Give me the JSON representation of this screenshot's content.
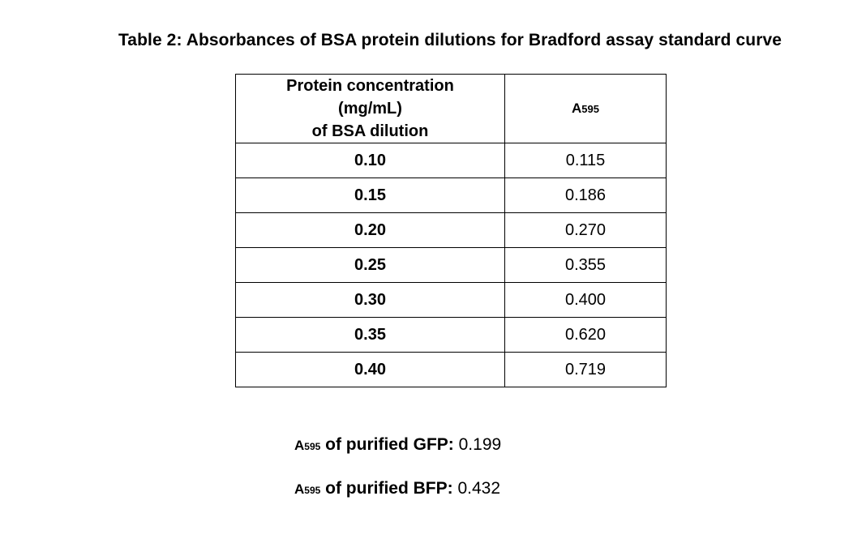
{
  "title": "Table 2: Absorbances of BSA protein dilutions for Bradford assay standard curve",
  "table": {
    "header_col1_line1": "Protein concentration",
    "header_col1_line2": "(mg/mL)",
    "header_col1_line3": "of BSA dilution",
    "header_col2_main": "A",
    "header_col2_sub": "595",
    "rows": [
      {
        "concentration": "0.10",
        "absorbance": "0.115"
      },
      {
        "concentration": "0.15",
        "absorbance": "0.186"
      },
      {
        "concentration": "0.20",
        "absorbance": "0.270"
      },
      {
        "concentration": "0.25",
        "absorbance": "0.355"
      },
      {
        "concentration": "0.30",
        "absorbance": "0.400"
      },
      {
        "concentration": "0.35",
        "absorbance": "0.620"
      },
      {
        "concentration": "0.40",
        "absorbance": "0.719"
      }
    ]
  },
  "results": [
    {
      "prefix": "A",
      "sub": "595",
      "label": " of purified GFP:",
      "value": " 0.199"
    },
    {
      "prefix": "A",
      "sub": "595",
      "label": " of purified BFP:",
      "value": " 0.432"
    }
  ]
}
